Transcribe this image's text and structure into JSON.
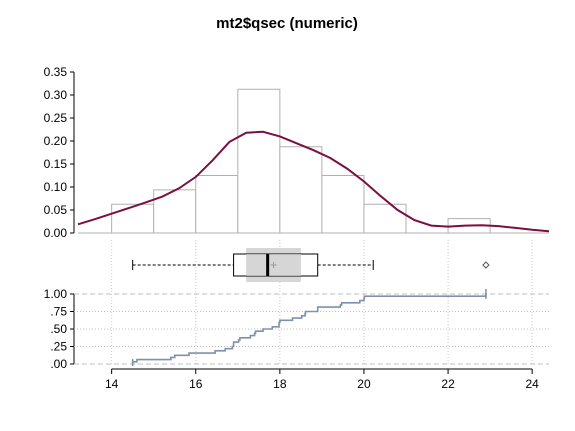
{
  "chart_data": {
    "title": "mt2$qsec (numeric)",
    "type": "histogram-boxplot-ecdf",
    "x_axis": {
      "range": [
        13.2,
        24.4
      ],
      "ticks": [
        14,
        16,
        18,
        20,
        22,
        24
      ],
      "tick_labels": [
        "14",
        "16",
        "18",
        "20",
        "22",
        "24"
      ]
    },
    "histogram": {
      "y_range": [
        0,
        0.35
      ],
      "y_ticks": [
        0,
        0.05,
        0.1,
        0.15,
        0.2,
        0.25,
        0.3,
        0.35
      ],
      "y_tick_labels": [
        "0.00",
        "0.05",
        "0.10",
        "0.15",
        "0.20",
        "0.25",
        "0.30",
        "0.35"
      ],
      "bin_edges": [
        14,
        15,
        16,
        17,
        18,
        19,
        20,
        21,
        22,
        23
      ],
      "densities": [
        0.0625,
        0.09375,
        0.125,
        0.3125,
        0.1875,
        0.125,
        0.0625,
        0.0,
        0.03125
      ],
      "bar_edge_color": "#b0b0b0",
      "density_color": "#7a1040",
      "density_curve": {
        "x": [
          13.2,
          13.6,
          14.0,
          14.4,
          14.8,
          15.2,
          15.6,
          16.0,
          16.4,
          16.8,
          17.2,
          17.6,
          18.0,
          18.4,
          18.8,
          19.2,
          19.6,
          20.0,
          20.4,
          20.8,
          21.2,
          21.6,
          22.0,
          22.4,
          22.8,
          23.2,
          23.6,
          24.0,
          24.4
        ],
        "y": [
          0.019,
          0.03,
          0.042,
          0.054,
          0.066,
          0.079,
          0.097,
          0.122,
          0.158,
          0.198,
          0.218,
          0.22,
          0.21,
          0.195,
          0.18,
          0.163,
          0.14,
          0.112,
          0.08,
          0.05,
          0.028,
          0.016,
          0.014,
          0.016,
          0.017,
          0.015,
          0.011,
          0.007,
          0.004
        ]
      }
    },
    "boxplot": {
      "whisker_low": 14.5,
      "q1": 16.9,
      "median": 17.71,
      "q3": 18.9,
      "whisker_high": 20.22,
      "mean": 17.85,
      "notch_low": 17.2,
      "notch_high": 18.5,
      "outliers": [
        22.9
      ]
    },
    "ecdf": {
      "y_range": [
        0,
        1
      ],
      "y_ticks": [
        0,
        0.25,
        0.5,
        0.75,
        1.0
      ],
      "y_tick_labels": [
        ".00",
        ".25",
        ".50",
        ".75",
        "1.00"
      ],
      "line_color": "#8090aa",
      "steps_x": [
        14.5,
        14.6,
        15.41,
        15.5,
        15.84,
        16.46,
        16.7,
        16.87,
        16.9,
        17.02,
        17.05,
        17.3,
        17.4,
        17.42,
        17.6,
        17.82,
        17.98,
        18.0,
        18.3,
        18.52,
        18.6,
        18.61,
        18.9,
        19.44,
        19.47,
        19.9,
        20.0,
        20.01,
        20.22,
        22.9
      ],
      "steps_y": [
        0.031,
        0.063,
        0.094,
        0.125,
        0.156,
        0.188,
        0.219,
        0.25,
        0.313,
        0.344,
        0.375,
        0.406,
        0.438,
        0.469,
        0.5,
        0.531,
        0.594,
        0.625,
        0.656,
        0.688,
        0.719,
        0.75,
        0.813,
        0.844,
        0.875,
        0.906,
        0.938,
        0.969,
        0.969,
        1.0
      ]
    }
  }
}
